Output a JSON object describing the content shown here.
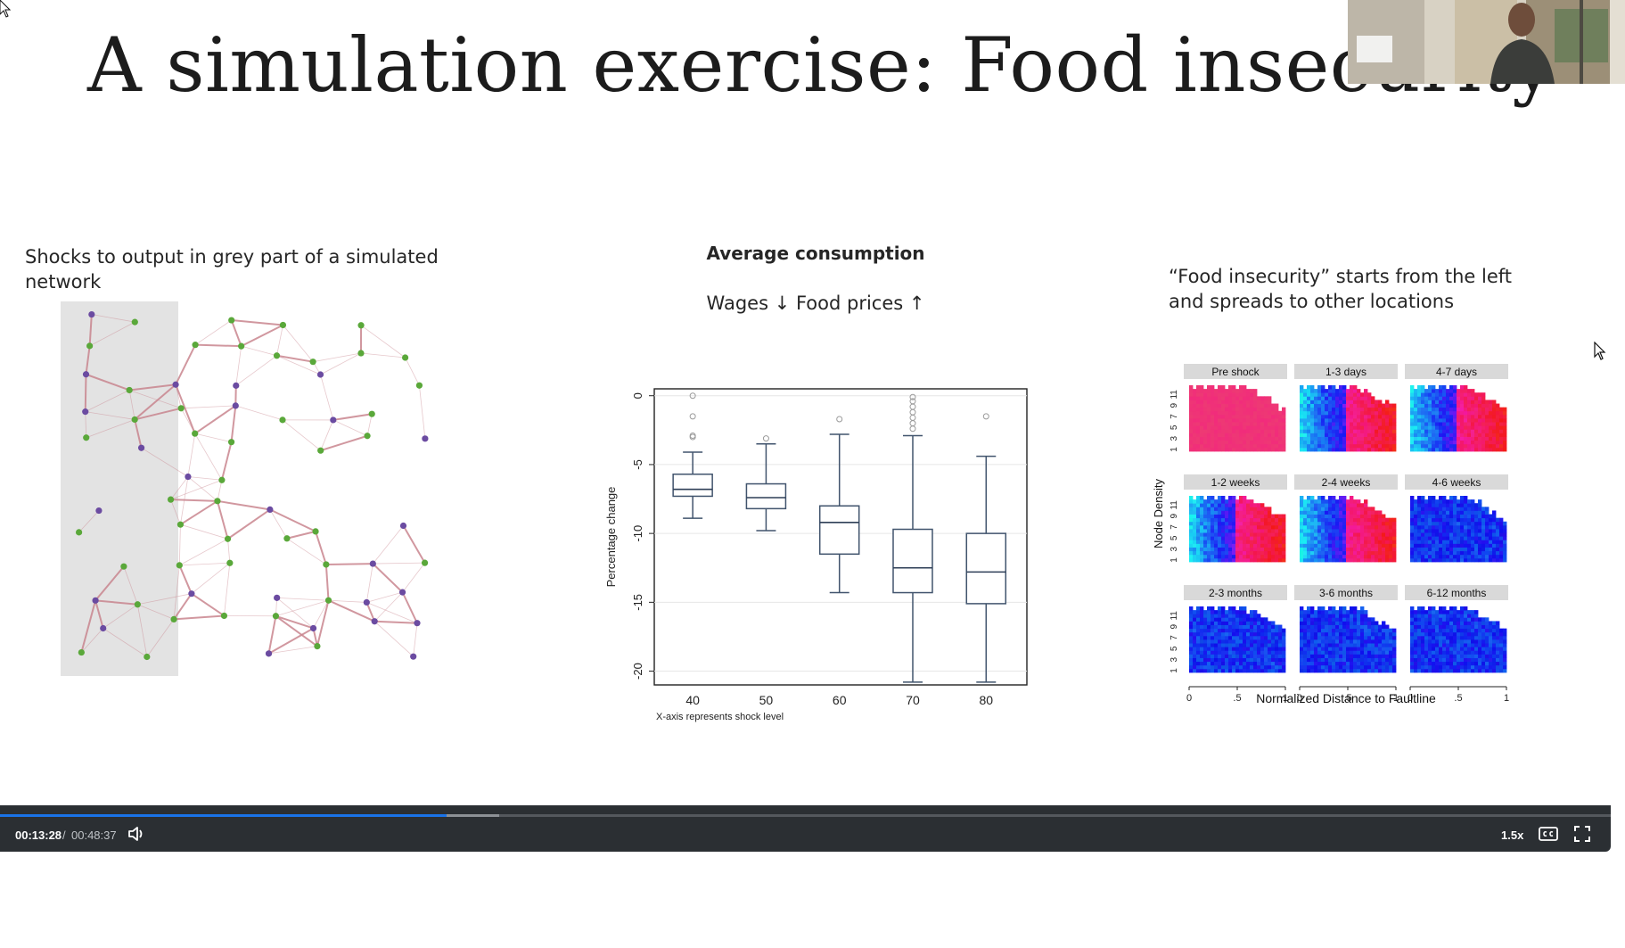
{
  "slide": {
    "title": "A simulation exercise: Food insecurity",
    "left_caption": "Shocks to output in grey part of a simulated network",
    "middle_title": "Average consumption",
    "middle_subtitle": "Wages ↓ Food prices ↑",
    "right_caption": "“Food insecurity” starts from the left and spreads to other locations"
  },
  "chart_data": [
    {
      "type": "box",
      "title": "",
      "ylabel": "Percentage change",
      "xlabel": "X-axis represents shock level",
      "ylim": [
        -21,
        0.5
      ],
      "yticks": [
        "0",
        "-5",
        "-10",
        "-15",
        "-20"
      ],
      "categories": [
        "40",
        "50",
        "60",
        "70",
        "80"
      ],
      "boxes": [
        {
          "x": "40",
          "whisker_low": -8.9,
          "q1": -7.3,
          "median": -6.8,
          "q3": -5.7,
          "whisker_high": -4.1,
          "outliers": [
            0,
            -1.5,
            -2.9,
            -3.0
          ]
        },
        {
          "x": "50",
          "whisker_low": -9.8,
          "q1": -8.2,
          "median": -7.4,
          "q3": -6.4,
          "whisker_high": -3.5,
          "outliers": [
            -3.1
          ]
        },
        {
          "x": "60",
          "whisker_low": -14.3,
          "q1": -11.5,
          "median": -9.2,
          "q3": -8.0,
          "whisker_high": -2.8,
          "outliers": [
            -1.7
          ]
        },
        {
          "x": "70",
          "whisker_low": -20.8,
          "q1": -14.3,
          "median": -12.5,
          "q3": -9.7,
          "whisker_high": -2.9,
          "outliers": [
            -0.1,
            -0.4,
            -0.8,
            -1.2,
            -1.6,
            -2.0,
            -2.4
          ]
        },
        {
          "x": "80",
          "whisker_low": -20.8,
          "q1": -15.1,
          "median": -12.8,
          "q3": -10.0,
          "whisker_high": -4.4,
          "outliers": [
            -1.5
          ]
        }
      ]
    },
    {
      "type": "heatmap",
      "ylabel": "Node Density",
      "xlabel": "Normalized Distance to Faultline",
      "xticks": [
        "0",
        ".5",
        "1"
      ],
      "yticks": [
        "1",
        "3",
        "5",
        "7",
        "9",
        "11"
      ],
      "panels": [
        {
          "label": "Pre shock",
          "palette": "pink"
        },
        {
          "label": "1-3 days",
          "palette": "mixed"
        },
        {
          "label": "4-7 days",
          "palette": "mixed"
        },
        {
          "label": "1-2 weeks",
          "palette": "mixed"
        },
        {
          "label": "2-4 weeks",
          "palette": "mixed"
        },
        {
          "label": "4-6 weeks",
          "palette": "blue"
        },
        {
          "label": "2-3 months",
          "palette": "blue"
        },
        {
          "label": "3-6 months",
          "palette": "blue"
        },
        {
          "label": "6-12 months",
          "palette": "blue"
        }
      ]
    }
  ],
  "player": {
    "current_time": "00:13:28",
    "separator": "/",
    "total_time": "00:48:37",
    "progress_fraction": 0.277,
    "buffered_fraction": 0.31,
    "speed_label": "1.5x",
    "icons": [
      "volume-icon",
      "closed-captions-icon",
      "fullscreen-icon"
    ],
    "accent_color": "#1a73e8"
  },
  "colors": {
    "network_green": "#5aa83a",
    "network_purple": "#6b4ba1",
    "network_edge": "#c9868f",
    "shock_region": "#e3e3e3"
  }
}
